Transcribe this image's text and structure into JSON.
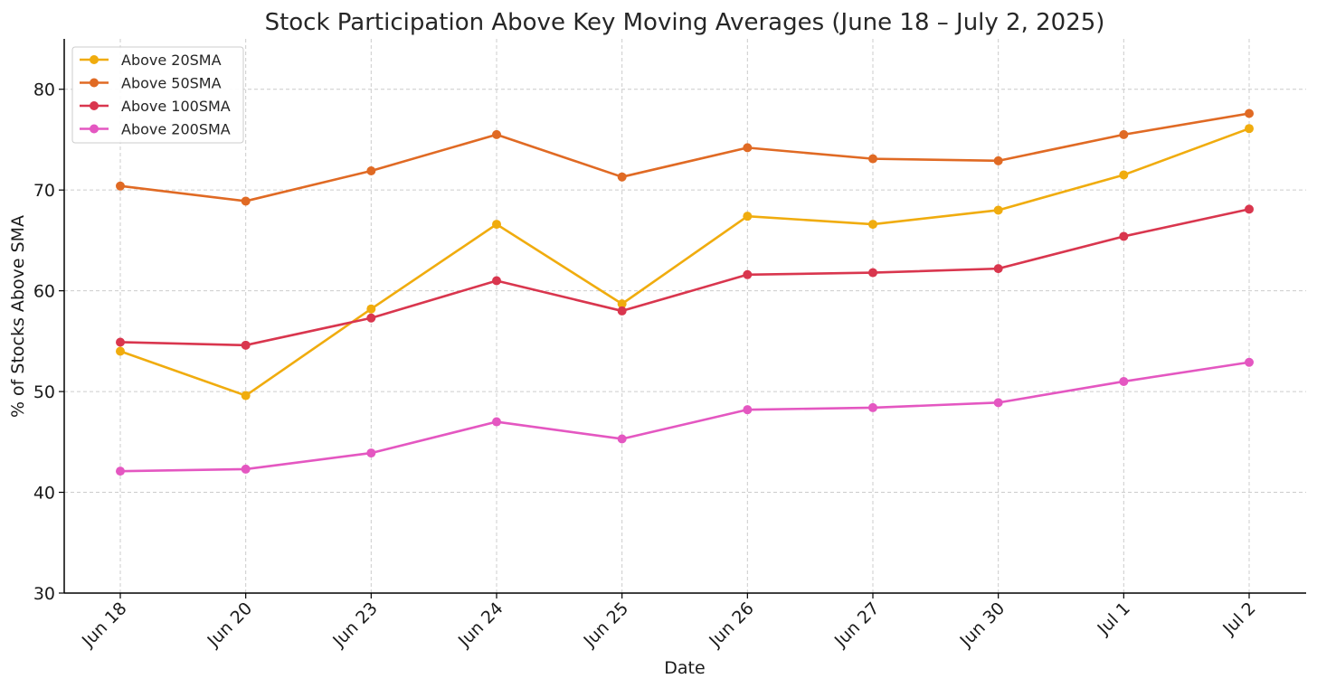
{
  "chart_data": {
    "type": "line",
    "title": "Stock Participation Above Key Moving Averages (June 18 – July 2, 2025)",
    "xlabel": "Date",
    "ylabel": "% of Stocks Above SMA",
    "categories": [
      "Jun 18",
      "Jun 20",
      "Jun 23",
      "Jun 24",
      "Jun 25",
      "Jun 26",
      "Jun 27",
      "Jun 30",
      "Jul 1",
      "Jul 2"
    ],
    "ylim": [
      30,
      85
    ],
    "yticks": [
      30,
      40,
      50,
      60,
      70,
      80
    ],
    "grid": true,
    "legend_position": "top-left",
    "series": [
      {
        "name": "Above 20SMA",
        "color": "#F0AC0E",
        "values": [
          54.0,
          49.6,
          58.2,
          66.6,
          58.7,
          67.4,
          66.6,
          68.0,
          71.5,
          76.1
        ]
      },
      {
        "name": "Above 50SMA",
        "color": "#E06A24",
        "values": [
          70.4,
          68.9,
          71.9,
          75.5,
          71.3,
          74.2,
          73.1,
          72.9,
          75.5,
          77.6
        ]
      },
      {
        "name": "Above 100SMA",
        "color": "#D9364E",
        "values": [
          54.9,
          54.6,
          57.3,
          61.0,
          58.0,
          61.6,
          61.8,
          62.2,
          65.4,
          68.1
        ]
      },
      {
        "name": "Above 200SMA",
        "color": "#E457C1",
        "values": [
          42.1,
          42.3,
          43.9,
          47.0,
          45.3,
          48.2,
          48.4,
          48.9,
          51.0,
          52.9
        ]
      }
    ]
  }
}
